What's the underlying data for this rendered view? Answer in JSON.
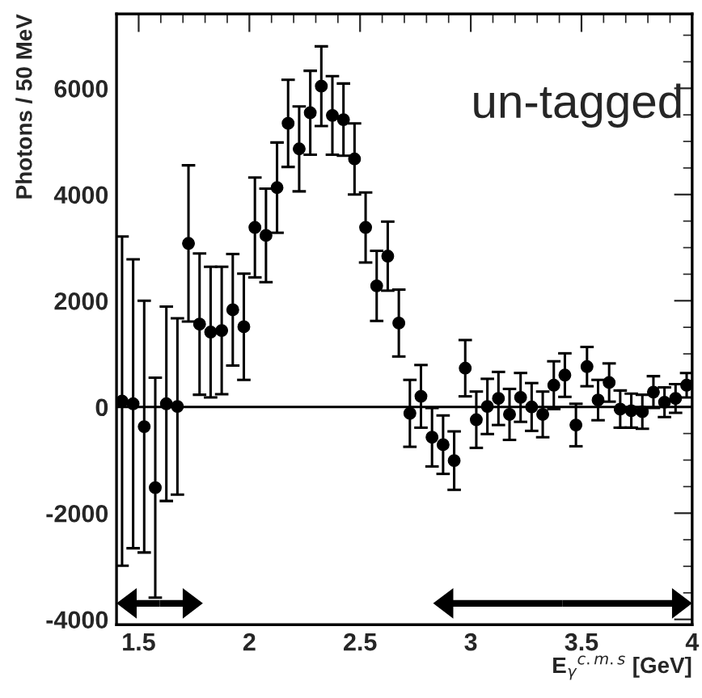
{
  "chart_data": {
    "type": "scatter",
    "xlabel": "E$_{γ}$$^{c.m.s}$ [GeV]",
    "ylabel": "Photons / 50 MeV",
    "annotations": [
      "un-tagged"
    ],
    "x": [
      1.425,
      1.475,
      1.525,
      1.575,
      1.625,
      1.675,
      1.725,
      1.775,
      1.825,
      1.875,
      1.925,
      1.975,
      2.025,
      2.075,
      2.125,
      2.175,
      2.225,
      2.275,
      2.325,
      2.375,
      2.425,
      2.475,
      2.525,
      2.575,
      2.625,
      2.675,
      2.725,
      2.775,
      2.825,
      2.875,
      2.925,
      2.975,
      3.025,
      3.075,
      3.125,
      3.175,
      3.225,
      3.275,
      3.325,
      3.375,
      3.425,
      3.475,
      3.525,
      3.575,
      3.625,
      3.675,
      3.725,
      3.775,
      3.825,
      3.875,
      3.925,
      3.975
    ],
    "series": [
      {
        "color": "#000000",
        "values": [
          110,
          60,
          -370,
          -1520,
          60,
          10,
          3080,
          1560,
          1410,
          1440,
          1830,
          1510,
          3380,
          3230,
          4130,
          5340,
          4860,
          5540,
          6040,
          5490,
          5410,
          4670,
          3380,
          2280,
          2840,
          1580,
          -120,
          200,
          -570,
          -710,
          -1010,
          730,
          -240,
          10,
          160,
          -140,
          180,
          0,
          -140,
          410,
          600,
          -340,
          760,
          130,
          460,
          -40,
          -70,
          -90,
          280,
          90,
          160,
          410
        ],
        "errors": [
          3100,
          2720,
          2370,
          2070,
          1830,
          1660,
          1470,
          1330,
          1230,
          1200,
          1050,
          1000,
          940,
          880,
          850,
          820,
          800,
          790,
          750,
          740,
          680,
          670,
          660,
          660,
          650,
          630,
          630,
          590,
          550,
          550,
          550,
          530,
          530,
          520,
          500,
          480,
          460,
          450,
          430,
          450,
          410,
          400,
          370,
          380,
          360,
          350,
          320,
          320,
          300,
          280,
          270,
          230
        ]
      }
    ],
    "xlim": [
      1.4,
      4.0
    ],
    "ylim": [
      -4100,
      7400
    ],
    "xticks": [
      1.5,
      2,
      2.5,
      3,
      3.5,
      4
    ],
    "yticks": [
      -4000,
      -2000,
      0,
      2000,
      4000,
      6000
    ],
    "ref_lines": [
      {
        "axis": "y",
        "value": 0,
        "color": "#000000"
      }
    ],
    "marker": "circle",
    "grid": false,
    "legend": false
  }
}
